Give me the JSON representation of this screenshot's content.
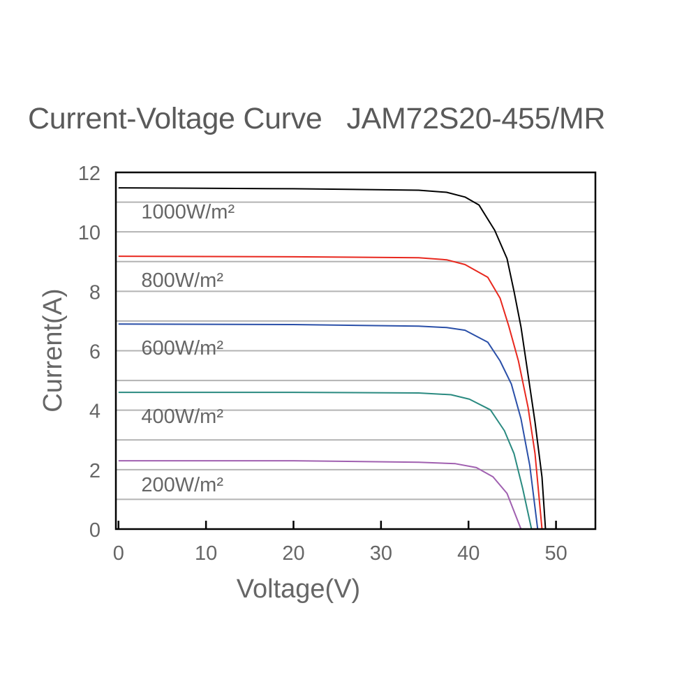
{
  "chart_data": {
    "type": "line",
    "title": "Current-Voltage Curve   JAM72S20-455/MR",
    "xlabel": "Voltage(V)",
    "ylabel": "Current(A)",
    "xlim": [
      -0.3,
      54.5
    ],
    "ylim": [
      0,
      12
    ],
    "xticks": [
      0,
      10,
      20,
      30,
      40,
      50
    ],
    "yticks": [
      0,
      2,
      4,
      6,
      8,
      10,
      12
    ],
    "grid": "horizontal, every 1 A",
    "colors": {
      "grid": "#b3b3b3",
      "text": "#666666"
    },
    "series": [
      {
        "name": "1000W/m²",
        "color": "#000000",
        "points": [
          [
            0,
            11.48
          ],
          [
            20,
            11.45
          ],
          [
            34.3,
            11.4
          ],
          [
            37.5,
            11.33
          ],
          [
            39.6,
            11.17
          ],
          [
            41.2,
            10.9
          ],
          [
            43.0,
            10.05
          ],
          [
            44.4,
            9.1
          ],
          [
            45.2,
            8.0
          ],
          [
            46.0,
            6.8
          ],
          [
            46.8,
            5.2
          ],
          [
            47.6,
            3.6
          ],
          [
            48.4,
            1.75
          ],
          [
            48.8,
            0
          ]
        ]
      },
      {
        "name": "800W/m²",
        "color": "#e8281e",
        "points": [
          [
            0,
            9.18
          ],
          [
            20,
            9.16
          ],
          [
            34.3,
            9.13
          ],
          [
            37.5,
            9.06
          ],
          [
            39.6,
            8.9
          ],
          [
            42.2,
            8.47
          ],
          [
            43.6,
            7.77
          ],
          [
            44.6,
            6.83
          ],
          [
            45.7,
            5.66
          ],
          [
            46.8,
            4.1
          ],
          [
            47.6,
            2.54
          ],
          [
            48.4,
            0
          ]
        ]
      },
      {
        "name": "600W/m²",
        "color": "#2a4fa8",
        "points": [
          [
            0,
            6.9
          ],
          [
            20,
            6.88
          ],
          [
            34.3,
            6.83
          ],
          [
            37.5,
            6.78
          ],
          [
            39.6,
            6.69
          ],
          [
            42.2,
            6.29
          ],
          [
            43.6,
            5.66
          ],
          [
            44.9,
            4.88
          ],
          [
            46.0,
            3.71
          ],
          [
            47.0,
            2.14
          ],
          [
            47.9,
            0
          ]
        ]
      },
      {
        "name": "400W/m²",
        "color": "#2a8a80",
        "points": [
          [
            0,
            4.6
          ],
          [
            20,
            4.6
          ],
          [
            34.3,
            4.58
          ],
          [
            38,
            4.52
          ],
          [
            40.1,
            4.37
          ],
          [
            42.5,
            4.01
          ],
          [
            44.1,
            3.31
          ],
          [
            45.2,
            2.54
          ],
          [
            46.2,
            1.36
          ],
          [
            47.2,
            0
          ]
        ]
      },
      {
        "name": "200W/m²",
        "color": "#a060b0",
        "points": [
          [
            0,
            2.3
          ],
          [
            20,
            2.3
          ],
          [
            34.3,
            2.25
          ],
          [
            38.5,
            2.2
          ],
          [
            40.9,
            2.07
          ],
          [
            42.8,
            1.76
          ],
          [
            44.4,
            1.2
          ],
          [
            46.0,
            0
          ]
        ]
      }
    ]
  }
}
